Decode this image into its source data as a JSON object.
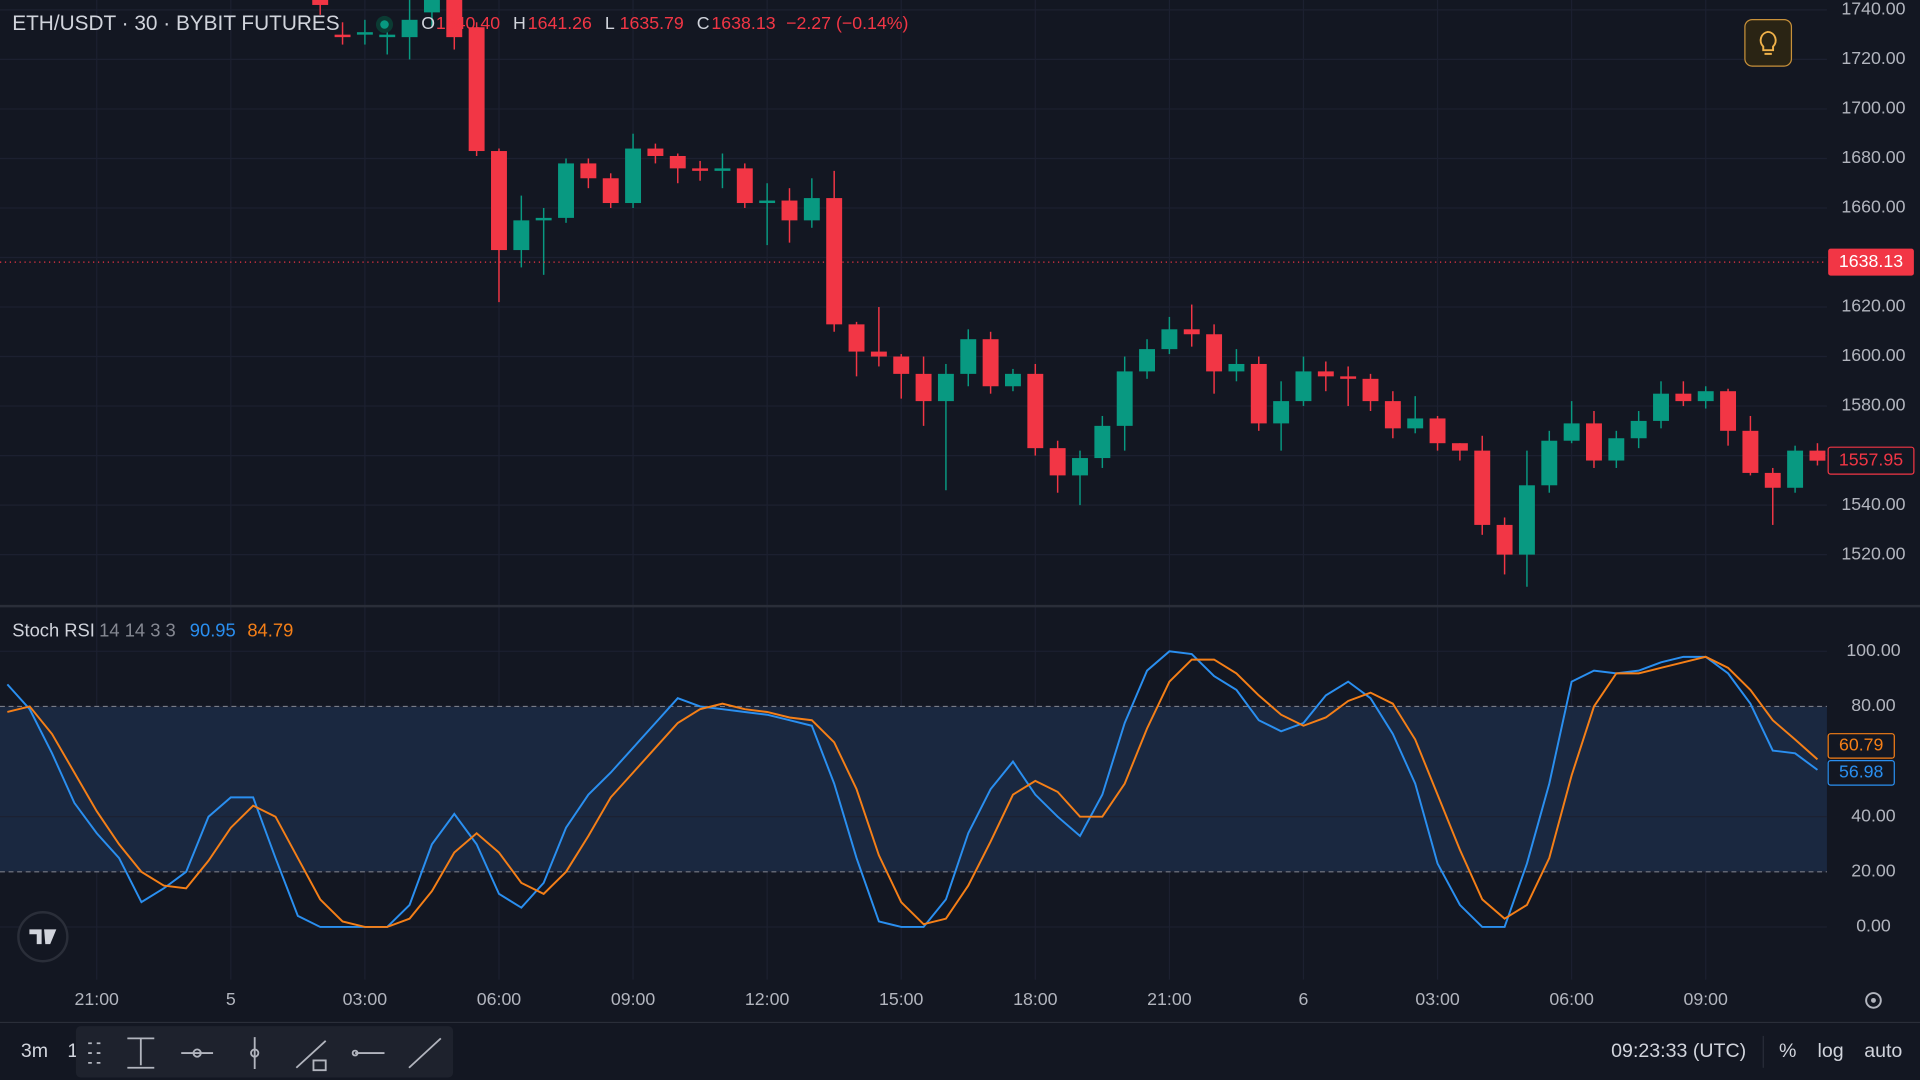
{
  "chart_data": [
    {
      "type": "candlestick",
      "title": "ETH/USDT · 30 · BYBIT FUTURES",
      "categories": [
        null,
        null,
        null,
        null,
        "21:00",
        null,
        null,
        null,
        null,
        null,
        "5",
        null,
        null,
        null,
        null,
        null,
        "03:00",
        null,
        null,
        null,
        null,
        null,
        "06:00",
        null,
        null,
        null,
        null,
        null,
        "09:00",
        null,
        null,
        null,
        null,
        null,
        "12:00",
        null,
        null,
        null,
        null,
        null,
        "15:00",
        null,
        null,
        null,
        null,
        null,
        "18:00",
        null,
        null,
        null,
        null,
        null,
        "21:00",
        null,
        null,
        null,
        null,
        null,
        "6",
        null,
        null,
        null,
        null,
        null,
        "03:00",
        null,
        null,
        null,
        null,
        null,
        "06:00",
        null,
        null,
        null,
        null,
        null,
        "09:00",
        null,
        null,
        null,
        null,
        null
      ],
      "open": [
        null,
        null,
        null,
        null,
        null,
        null,
        null,
        null,
        null,
        null,
        null,
        null,
        null,
        null,
        1750,
        1730,
        1730,
        1729,
        1729,
        1739,
        1750,
        1733,
        1683,
        1643,
        1655,
        1656,
        1678,
        1672,
        1662,
        1684,
        1681,
        1676,
        1675,
        1676,
        1662,
        1663,
        1655,
        1664,
        1613,
        1602,
        1600,
        1593,
        1582,
        1593,
        1607,
        1588,
        1593,
        1563,
        1552,
        1559,
        1572,
        1594,
        1603,
        1611,
        1609,
        1594,
        1597,
        1573,
        1582,
        1594,
        1592,
        1591,
        1582,
        1571,
        1575,
        1565,
        1562,
        1532,
        1520,
        1548,
        1566,
        1573,
        1558,
        1567,
        1574,
        1585,
        1582,
        1586,
        1570,
        1553,
        1547,
        1562
      ],
      "high": [
        null,
        null,
        null,
        null,
        null,
        null,
        null,
        null,
        null,
        null,
        null,
        null,
        null,
        null,
        1755,
        1735,
        1736,
        1733,
        1745,
        1752,
        1755,
        1735,
        1684,
        1665,
        1660,
        1680,
        1680,
        1674,
        1690,
        1686,
        1682,
        1679,
        1682,
        1678,
        1670,
        1668,
        1672,
        1675,
        1614,
        1620,
        1601,
        1600,
        1597,
        1611,
        1610,
        1595,
        1597,
        1566,
        1562,
        1576,
        1600,
        1607,
        1616,
        1621,
        1613,
        1603,
        1600,
        1590,
        1600,
        1598,
        1596,
        1593,
        1586,
        1584,
        1576,
        1565,
        1568,
        1535,
        1562,
        1570,
        1582,
        1578,
        1570,
        1578,
        1590,
        1590,
        1588,
        1587,
        1576,
        1555,
        1564,
        1565
      ],
      "low": [
        null,
        null,
        null,
        null,
        null,
        null,
        null,
        null,
        null,
        null,
        null,
        null,
        null,
        null,
        1738,
        1726,
        1726,
        1722,
        1720,
        1733,
        1724,
        1681,
        1622,
        1636,
        1633,
        1654,
        1668,
        1660,
        1660,
        1678,
        1670,
        1671,
        1668,
        1660,
        1645,
        1646,
        1652,
        1610,
        1592,
        1596,
        1583,
        1572,
        1546,
        1588,
        1585,
        1586,
        1560,
        1545,
        1540,
        1555,
        1562,
        1591,
        1601,
        1604,
        1585,
        1590,
        1570,
        1562,
        1580,
        1586,
        1580,
        1578,
        1567,
        1569,
        1562,
        1558,
        1528,
        1512,
        1507,
        1545,
        1565,
        1555,
        1555,
        1563,
        1571,
        1580,
        1579,
        1564,
        1552,
        1532,
        1545,
        1556
      ],
      "close": [
        null,
        null,
        null,
        null,
        null,
        null,
        null,
        null,
        null,
        null,
        null,
        null,
        null,
        null,
        1742,
        1729,
        1731,
        1730,
        1736,
        1748,
        1729,
        1683,
        1643,
        1655,
        1656,
        1678,
        1672,
        1662,
        1684,
        1681,
        1676,
        1675,
        1676,
        1662,
        1663,
        1655,
        1664,
        1613,
        1602,
        1600,
        1593,
        1582,
        1593,
        1607,
        1588,
        1593,
        1563,
        1552,
        1559,
        1572,
        1594,
        1603,
        1611,
        1609,
        1594,
        1597,
        1573,
        1582,
        1594,
        1592,
        1591,
        1582,
        1571,
        1575,
        1565,
        1562,
        1532,
        1520,
        1548,
        1566,
        1573,
        1558,
        1567,
        1574,
        1585,
        1582,
        1586,
        1570,
        1553,
        1547,
        1562,
        1557.95
      ],
      "up_color": "#089981",
      "down_color": "#f23645",
      "ohlc_legend": [
        {
          "key": "O",
          "value": 1640.4,
          "label": "1640.40"
        },
        {
          "key": "H",
          "value": 1641.26,
          "label": "1641.26"
        },
        {
          "key": "L",
          "value": 1635.79,
          "label": "1635.79"
        },
        {
          "key": "C",
          "value": 1638.13,
          "label": "1638.13"
        }
      ],
      "change": "−2.27 (−0.14%)",
      "ylim": [
        1499.2,
        1744
      ],
      "yticks": [
        {
          "value": 1740,
          "label": "1740.00"
        },
        {
          "value": 1720,
          "label": "1720.00"
        },
        {
          "value": 1700,
          "label": "1700.00"
        },
        {
          "value": 1680,
          "label": "1680.00"
        },
        {
          "value": 1660,
          "label": "1660.00"
        },
        {
          "value": 1640,
          "label": "1640.00"
        },
        {
          "value": 1620,
          "label": "1620.00"
        },
        {
          "value": 1600,
          "label": "1600.00"
        },
        {
          "value": 1580,
          "label": "1580.00"
        },
        {
          "value": 1560,
          "label": "1560.00"
        },
        {
          "value": 1540,
          "label": "1540.00"
        },
        {
          "value": 1520,
          "label": "1520.00"
        }
      ],
      "grid": true
    },
    {
      "type": "line",
      "title": "Stoch RSI",
      "params": "14 14 3 3",
      "ylim": [
        -19.1,
        116.4
      ],
      "yticks": [
        {
          "value": 100,
          "label": "100.00"
        },
        {
          "value": 80,
          "label": "80.00"
        },
        {
          "value": 40,
          "label": "40.00"
        },
        {
          "value": 20,
          "label": "20.00"
        },
        {
          "value": 0,
          "label": "0.00"
        }
      ],
      "bands": [
        80,
        20
      ],
      "band_fill": "#1a2840",
      "series": [
        {
          "color": "#2a8ff0",
          "legend_value": 90.95,
          "values": [
            88,
            79,
            63,
            45,
            34,
            25,
            9,
            14,
            20,
            40,
            47,
            47,
            25,
            4,
            0,
            0,
            0,
            0,
            8,
            30,
            41,
            30,
            12,
            7,
            16,
            36,
            48,
            56,
            65,
            74,
            83,
            80,
            79,
            78,
            77,
            75,
            73,
            52,
            25,
            2,
            0,
            0,
            10,
            34,
            50,
            60,
            48,
            40,
            33,
            48,
            74,
            93,
            100,
            99,
            91,
            86,
            75,
            71,
            74,
            84,
            89,
            83,
            70,
            52,
            23,
            8,
            0,
            0,
            23,
            52,
            89,
            93,
            92,
            93,
            96,
            98,
            98,
            92,
            81,
            64,
            63,
            56.98
          ]
        },
        {
          "color": "#f57f17",
          "legend_value": 84.79,
          "values": [
            78,
            80,
            70,
            56,
            42,
            30,
            20,
            15,
            14,
            24,
            36,
            44,
            40,
            25,
            10,
            2,
            0,
            0,
            3,
            13,
            27,
            34,
            27,
            16,
            12,
            20,
            33,
            47,
            56,
            65,
            74,
            79,
            81,
            79,
            78,
            76,
            75,
            67,
            50,
            26,
            9,
            1,
            3,
            15,
            31,
            48,
            53,
            49,
            40,
            40,
            52,
            72,
            89,
            97,
            97,
            92,
            84,
            77,
            73,
            76,
            82,
            85,
            81,
            68,
            48,
            28,
            10,
            3,
            8,
            25,
            55,
            80,
            92,
            92,
            94,
            96,
            98,
            94,
            86,
            75,
            68,
            60.79
          ]
        }
      ]
    }
  ],
  "toolbar": {
    "interval": "3m",
    "extra": "1",
    "clock": "09:23:33 (UTC)",
    "percent": "%",
    "log": "log",
    "auto": "auto"
  }
}
